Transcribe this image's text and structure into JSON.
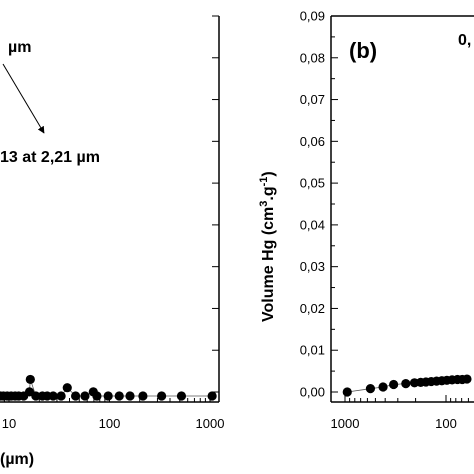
{
  "chart_data": [
    {
      "id": "a",
      "type": "scatter",
      "x_scale": "log",
      "x_reversed": true,
      "xlabel": "(µm)",
      "x_ticks": [
        10,
        100,
        1000
      ],
      "x_tick_labels": [
        "10",
        "100",
        "1000"
      ],
      "xlim": [
        8.0,
        1150
      ],
      "ylim": [
        0,
        0.09
      ],
      "annotation_top": "µm",
      "annotation_arrow": "13 at 2,21 µm",
      "points": [
        {
          "x": 1050,
          "y": 0.0
        },
        {
          "x": 520,
          "y": 0.0
        },
        {
          "x": 330,
          "y": 0.0
        },
        {
          "x": 215,
          "y": 0.0
        },
        {
          "x": 160,
          "y": 0.0
        },
        {
          "x": 125,
          "y": 0.0
        },
        {
          "x": 97,
          "y": 0.0
        },
        {
          "x": 75,
          "y": 0.0
        },
        {
          "x": 69,
          "y": 0.001
        },
        {
          "x": 57,
          "y": 0.0
        },
        {
          "x": 46,
          "y": 0.0
        },
        {
          "x": 38,
          "y": 0.002
        },
        {
          "x": 33,
          "y": 0.0
        },
        {
          "x": 27.5,
          "y": 0.0
        },
        {
          "x": 24,
          "y": 0.0
        },
        {
          "x": 21.5,
          "y": 0.0
        },
        {
          "x": 18.5,
          "y": 0.0
        },
        {
          "x": 16.3,
          "y": 0.004
        },
        {
          "x": 16.0,
          "y": 0.001
        },
        {
          "x": 14.0,
          "y": 0.0
        },
        {
          "x": 12.5,
          "y": 0.0
        },
        {
          "x": 11.5,
          "y": 0.0
        },
        {
          "x": 10.5,
          "y": 0.0
        },
        {
          "x": 9.6,
          "y": 0.0
        },
        {
          "x": 8.8,
          "y": 0.0
        },
        {
          "x": 8.2,
          "y": 0.0
        }
      ]
    },
    {
      "id": "b",
      "type": "scatter",
      "panel_label": "(b)",
      "header_text": "0,",
      "x_scale": "log",
      "x_reversed": true,
      "x_ticks": [
        1000,
        100
      ],
      "x_tick_labels": [
        "1000",
        "100"
      ],
      "xlim": [
        1700,
        50
      ],
      "ylabel_main": "Volume Hg (cm",
      "ylabel_sup1": "3",
      "ylabel_mid": ".g",
      "ylabel_sup2": "-1",
      "ylabel_end": ")",
      "ylim": [
        0,
        0.09
      ],
      "y_ticks": [
        0,
        0.01,
        0.02,
        0.03,
        0.04,
        0.05,
        0.06,
        0.07,
        0.08,
        0.09
      ],
      "y_tick_labels": [
        "0,00",
        "0,01",
        "0,02",
        "0,03",
        "0,04",
        "0,05",
        "0,06",
        "0,07",
        "0,08",
        "0,09"
      ],
      "points": [
        {
          "x": 950,
          "y": 0.0
        },
        {
          "x": 560,
          "y": 0.0008
        },
        {
          "x": 420,
          "y": 0.0012
        },
        {
          "x": 330,
          "y": 0.0018
        },
        {
          "x": 250,
          "y": 0.002
        },
        {
          "x": 205,
          "y": 0.0022
        },
        {
          "x": 178,
          "y": 0.0023
        },
        {
          "x": 158,
          "y": 0.0024
        },
        {
          "x": 140,
          "y": 0.0025
        },
        {
          "x": 124,
          "y": 0.0026
        },
        {
          "x": 110,
          "y": 0.0027
        },
        {
          "x": 98,
          "y": 0.0028
        },
        {
          "x": 87,
          "y": 0.0029
        },
        {
          "x": 77,
          "y": 0.003
        },
        {
          "x": 69,
          "y": 0.003
        },
        {
          "x": 62,
          "y": 0.0031
        }
      ]
    }
  ]
}
